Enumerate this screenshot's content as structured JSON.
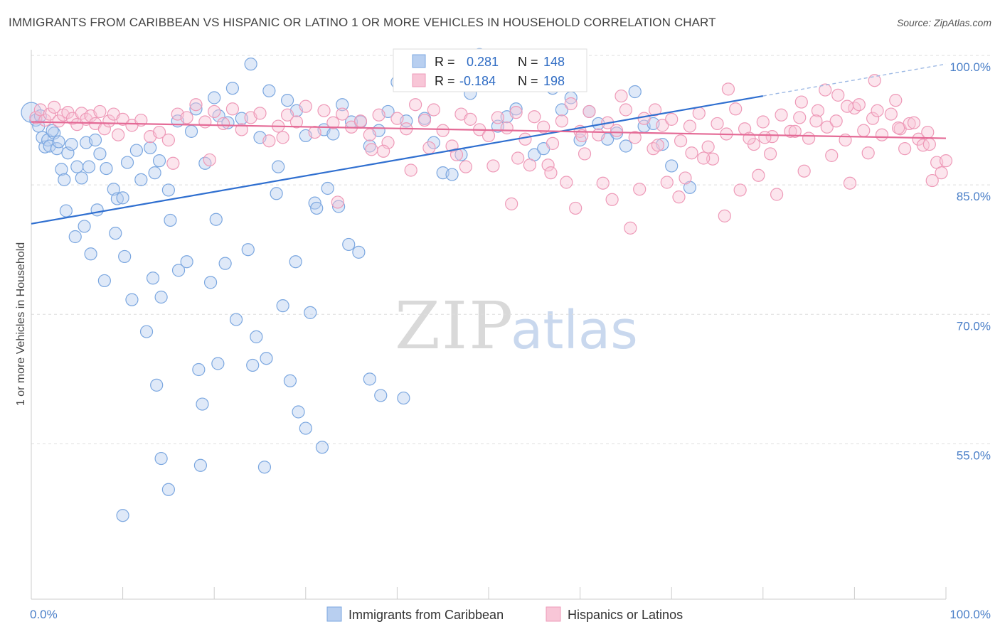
{
  "title": "IMMIGRANTS FROM CARIBBEAN VS HISPANIC OR LATINO 1 OR MORE VEHICLES IN HOUSEHOLD CORRELATION CHART",
  "source": "Source: ZipAtlas.com",
  "watermark": {
    "zip": "ZIP",
    "atlas": "atlas"
  },
  "legend_top": {
    "r_label": "R =",
    "n_label": "N =",
    "series": [
      {
        "r": "0.281",
        "n": "148"
      },
      {
        "r": "-0.184",
        "n": "198"
      }
    ]
  },
  "chart_data": {
    "type": "scatter",
    "xlabel": "",
    "ylabel": "1 or more Vehicles in Household",
    "xlim": [
      0,
      100
    ],
    "ylim": [
      37,
      100
    ],
    "x_tick_labels": [
      "0.0%",
      "100.0%"
    ],
    "y_ticks": [
      {
        "value": 100,
        "label": "100.0%"
      },
      {
        "value": 85,
        "label": "85.0%"
      },
      {
        "value": 70,
        "label": "70.0%"
      },
      {
        "value": 55,
        "label": "55.0%"
      }
    ],
    "grid": "horizontal dashed",
    "legend_position": "bottom-center",
    "series": [
      {
        "name": "Immigrants from Caribbean",
        "color": "#7ba7e0",
        "fill": "#b8cff0",
        "line_color": "#2f6fd0",
        "trend": {
          "x0": 0,
          "y0": 80.5,
          "x1": 80,
          "y1": 95.3,
          "dashed_to": {
            "x": 100,
            "y": 99.0
          }
        },
        "points": [
          [
            0,
            93.4
          ],
          [
            0.5,
            92.5
          ],
          [
            0.8,
            91.8
          ],
          [
            1.2,
            90.5
          ],
          [
            1.5,
            89.4
          ],
          [
            1.8,
            90.2
          ],
          [
            2,
            89.5
          ],
          [
            2.5,
            91
          ],
          [
            2.8,
            89.2
          ],
          [
            3,
            90
          ],
          [
            3.3,
            86.8
          ],
          [
            3.6,
            85.6
          ],
          [
            4,
            88.7
          ],
          [
            4.4,
            89.7
          ],
          [
            5,
            87.1
          ],
          [
            5.5,
            85.8
          ],
          [
            6,
            89.9
          ],
          [
            6.3,
            87.1
          ],
          [
            7,
            90.2
          ],
          [
            7.5,
            88.6
          ],
          [
            8.2,
            86.9
          ],
          [
            9,
            84.5
          ],
          [
            9.4,
            83.4
          ],
          [
            10,
            83.5
          ],
          [
            10.5,
            87.6
          ],
          [
            11.5,
            89
          ],
          [
            12,
            85.6
          ],
          [
            13,
            89.3
          ],
          [
            13.5,
            86.4
          ],
          [
            14,
            87.8
          ],
          [
            15,
            84.4
          ],
          [
            16,
            92.4
          ],
          [
            17.5,
            91.2
          ],
          [
            18,
            93.8
          ],
          [
            19,
            87.5
          ],
          [
            20,
            95.1
          ],
          [
            20.5,
            93
          ],
          [
            21.5,
            92.2
          ],
          [
            22,
            96.2
          ],
          [
            23,
            92.7
          ],
          [
            24,
            99
          ],
          [
            25,
            90.5
          ],
          [
            26,
            95.9
          ],
          [
            27,
            87.1
          ],
          [
            28,
            94.8
          ],
          [
            29,
            93.6
          ],
          [
            30,
            90.7
          ],
          [
            31,
            82.9
          ],
          [
            32,
            91.4
          ],
          [
            33,
            90.9
          ],
          [
            34,
            94.3
          ],
          [
            35,
            92.3
          ],
          [
            36,
            92.3
          ],
          [
            37,
            89.5
          ],
          [
            38,
            91.3
          ],
          [
            39,
            93.5
          ],
          [
            40,
            96.9
          ],
          [
            41,
            92.4
          ],
          [
            42,
            96.5
          ],
          [
            43,
            92.7
          ],
          [
            44,
            89.9
          ],
          [
            45,
            86.4
          ],
          [
            46,
            86.2
          ],
          [
            47,
            88.5
          ],
          [
            48,
            95.6
          ],
          [
            49,
            100.1
          ],
          [
            50,
            97.2
          ],
          [
            51,
            91.8
          ],
          [
            52,
            92.9
          ],
          [
            53,
            93.8
          ],
          [
            55,
            88.5
          ],
          [
            56,
            89.2
          ],
          [
            57,
            96.2
          ],
          [
            58,
            93.7
          ],
          [
            59,
            95.1
          ],
          [
            60,
            90.2
          ],
          [
            61,
            93.5
          ],
          [
            62,
            92.1
          ],
          [
            63,
            90.3
          ],
          [
            64,
            91
          ],
          [
            65,
            89.5
          ],
          [
            66,
            95.8
          ],
          [
            67,
            91.8
          ],
          [
            68,
            92.1
          ],
          [
            69,
            89.7
          ],
          [
            70,
            87.2
          ],
          [
            72,
            84.7
          ],
          [
            1,
            93
          ],
          [
            2.3,
            91.3
          ],
          [
            3.8,
            82
          ],
          [
            4.8,
            79
          ],
          [
            5.8,
            80.2
          ],
          [
            6.5,
            77
          ],
          [
            7.2,
            82.1
          ],
          [
            8,
            73.9
          ],
          [
            9.2,
            79.4
          ],
          [
            10.2,
            76.7
          ],
          [
            11,
            71.7
          ],
          [
            12.6,
            68
          ],
          [
            13.3,
            74.2
          ],
          [
            14.2,
            72
          ],
          [
            15.2,
            80.9
          ],
          [
            16.1,
            75.1
          ],
          [
            17,
            76.1
          ],
          [
            18.3,
            63.6
          ],
          [
            19.6,
            73.7
          ],
          [
            20.2,
            81
          ],
          [
            21.2,
            75.9
          ],
          [
            22.4,
            69.4
          ],
          [
            23.7,
            77.5
          ],
          [
            24.6,
            67.4
          ],
          [
            25.7,
            64.9
          ],
          [
            26.8,
            84
          ],
          [
            27.5,
            71
          ],
          [
            28.3,
            62.3
          ],
          [
            29.2,
            58.7
          ],
          [
            30,
            56.8
          ],
          [
            31.2,
            82.3
          ],
          [
            32.4,
            84.6
          ],
          [
            33.6,
            82.5
          ],
          [
            34.7,
            78.1
          ],
          [
            35.8,
            77.2
          ],
          [
            37,
            62.5
          ],
          [
            38.2,
            60.6
          ],
          [
            18.5,
            52.5
          ],
          [
            14.2,
            53.3
          ],
          [
            10,
            46.7
          ],
          [
            25.5,
            52.3
          ],
          [
            31.8,
            54.6
          ],
          [
            40.7,
            60.3
          ],
          [
            18.7,
            59.6
          ],
          [
            15,
            49.7
          ],
          [
            13.7,
            61.8
          ],
          [
            20.4,
            64.3
          ],
          [
            24.2,
            64.1
          ],
          [
            30.5,
            70.2
          ],
          [
            28.9,
            76.1
          ]
        ]
      },
      {
        "name": "Hispanics or Latinos",
        "color": "#ee9ab8",
        "fill": "#f8c6d7",
        "line_color": "#e46a96",
        "trend": {
          "x0": 0,
          "y0": 92.3,
          "x1": 100,
          "y1": 90.4
        },
        "points": [
          [
            0.5,
            92.8
          ],
          [
            1,
            93.7
          ],
          [
            1.5,
            92.5
          ],
          [
            2,
            93.2
          ],
          [
            2.5,
            94
          ],
          [
            3,
            92.4
          ],
          [
            3.5,
            93.1
          ],
          [
            4,
            93.4
          ],
          [
            4.5,
            92.7
          ],
          [
            5,
            92
          ],
          [
            5.5,
            93.3
          ],
          [
            6,
            92.6
          ],
          [
            6.5,
            93
          ],
          [
            7,
            92.1
          ],
          [
            7.5,
            93.5
          ],
          [
            8,
            91.5
          ],
          [
            8.5,
            92.4
          ],
          [
            9,
            93.2
          ],
          [
            9.5,
            90.8
          ],
          [
            10,
            92.6
          ],
          [
            11,
            91.9
          ],
          [
            12,
            92.5
          ],
          [
            13,
            90.6
          ],
          [
            14,
            91.1
          ],
          [
            15,
            90.2
          ],
          [
            16,
            93.2
          ],
          [
            17,
            92.8
          ],
          [
            18,
            94.3
          ],
          [
            19,
            92.3
          ],
          [
            20,
            93.5
          ],
          [
            21,
            92.1
          ],
          [
            22,
            93.8
          ],
          [
            23,
            91.4
          ],
          [
            24,
            92.8
          ],
          [
            25,
            93.3
          ],
          [
            26,
            90.1
          ],
          [
            27,
            91.8
          ],
          [
            28,
            93.1
          ],
          [
            29,
            92.3
          ],
          [
            30,
            94.1
          ],
          [
            31,
            91.1
          ],
          [
            32,
            93.6
          ],
          [
            33,
            92.2
          ],
          [
            34,
            93.2
          ],
          [
            35,
            91.7
          ],
          [
            36,
            92.4
          ],
          [
            37,
            90.8
          ],
          [
            38,
            93.1
          ],
          [
            39,
            89.9
          ],
          [
            40,
            92.7
          ],
          [
            41,
            91.5
          ],
          [
            42,
            94.3
          ],
          [
            43,
            92.5
          ],
          [
            44,
            93.7
          ],
          [
            45,
            91.3
          ],
          [
            46,
            89.5
          ],
          [
            47,
            93.2
          ],
          [
            48,
            92.6
          ],
          [
            49,
            91.4
          ],
          [
            50,
            90.7
          ],
          [
            51,
            92.8
          ],
          [
            52,
            91.6
          ],
          [
            53,
            93.4
          ],
          [
            54,
            90.3
          ],
          [
            55,
            92.9
          ],
          [
            56,
            91.7
          ],
          [
            57,
            89.8
          ],
          [
            58,
            92.4
          ],
          [
            59,
            94.4
          ],
          [
            60,
            91.2
          ],
          [
            61,
            93.5
          ],
          [
            62,
            90.8
          ],
          [
            63,
            92.2
          ],
          [
            64,
            91.3
          ],
          [
            65,
            93.7
          ],
          [
            66,
            90.5
          ],
          [
            67,
            92.7
          ],
          [
            68,
            89.2
          ],
          [
            69,
            91.9
          ],
          [
            70,
            92.6
          ],
          [
            71,
            90.1
          ],
          [
            72,
            91.8
          ],
          [
            73,
            93.3
          ],
          [
            74,
            89.4
          ],
          [
            75,
            92.1
          ],
          [
            76,
            90.9
          ],
          [
            77,
            93.8
          ],
          [
            78,
            91.5
          ],
          [
            79,
            89.7
          ],
          [
            80,
            92.3
          ],
          [
            81,
            90.6
          ],
          [
            82,
            93.1
          ],
          [
            83,
            91.2
          ],
          [
            84,
            92.8
          ],
          [
            85,
            90.4
          ],
          [
            86,
            93.6
          ],
          [
            87,
            91.7
          ],
          [
            88,
            92.4
          ],
          [
            89,
            90.2
          ],
          [
            90,
            93.9
          ],
          [
            91,
            91.3
          ],
          [
            92,
            92.7
          ],
          [
            93,
            90.8
          ],
          [
            94,
            93.2
          ],
          [
            95,
            91.5
          ],
          [
            96,
            92.1
          ],
          [
            97,
            90.3
          ],
          [
            98,
            91.1
          ],
          [
            99,
            87.6
          ],
          [
            99.5,
            86.4
          ],
          [
            100,
            87.8
          ],
          [
            15.5,
            87.5
          ],
          [
            19.5,
            87.9
          ],
          [
            27.5,
            90.5
          ],
          [
            33.5,
            83
          ],
          [
            38.5,
            88.9
          ],
          [
            41.5,
            86.7
          ],
          [
            46.5,
            88.5
          ],
          [
            50.5,
            87.2
          ],
          [
            53.2,
            88.1
          ],
          [
            56.5,
            87.3
          ],
          [
            58.5,
            85.3
          ],
          [
            60.5,
            88.6
          ],
          [
            63.5,
            83.3
          ],
          [
            66.5,
            84.5
          ],
          [
            69.5,
            85.3
          ],
          [
            71.5,
            85.8
          ],
          [
            74.5,
            88
          ],
          [
            77.5,
            84.4
          ],
          [
            79.5,
            86.1
          ],
          [
            81.5,
            83.9
          ],
          [
            84.5,
            86.6
          ],
          [
            87.5,
            88.4
          ],
          [
            89.5,
            85.2
          ],
          [
            91.5,
            88.7
          ],
          [
            95.5,
            89.2
          ],
          [
            98.5,
            85.5
          ],
          [
            47.5,
            87.1
          ],
          [
            52.5,
            82.8
          ],
          [
            56.8,
            86.4
          ],
          [
            59.5,
            82.3
          ],
          [
            62.5,
            85.2
          ],
          [
            65.5,
            80
          ],
          [
            68.5,
            89.6
          ],
          [
            70.8,
            83.6
          ],
          [
            73.5,
            88.1
          ],
          [
            75.8,
            81.4
          ],
          [
            78.5,
            90.4
          ],
          [
            80.8,
            88.6
          ],
          [
            83.5,
            91.2
          ],
          [
            85.8,
            92.4
          ],
          [
            88.2,
            95.4
          ],
          [
            90.5,
            94.3
          ],
          [
            92.5,
            93.6
          ],
          [
            94.5,
            94.8
          ],
          [
            96.5,
            92.2
          ],
          [
            97.5,
            89.6
          ],
          [
            37.2,
            89.1
          ],
          [
            43.5,
            89.3
          ],
          [
            54.5,
            87.3
          ],
          [
            60.2,
            90.7
          ],
          [
            64.5,
            95.3
          ],
          [
            68.2,
            93.7
          ],
          [
            72.2,
            88.7
          ],
          [
            76.2,
            96.1
          ],
          [
            80.2,
            90.5
          ],
          [
            84.2,
            94.6
          ],
          [
            86.8,
            96
          ],
          [
            89.2,
            94.1
          ],
          [
            92.2,
            97.1
          ],
          [
            94.8,
            91.6
          ],
          [
            98.2,
            89.7
          ]
        ]
      }
    ]
  }
}
